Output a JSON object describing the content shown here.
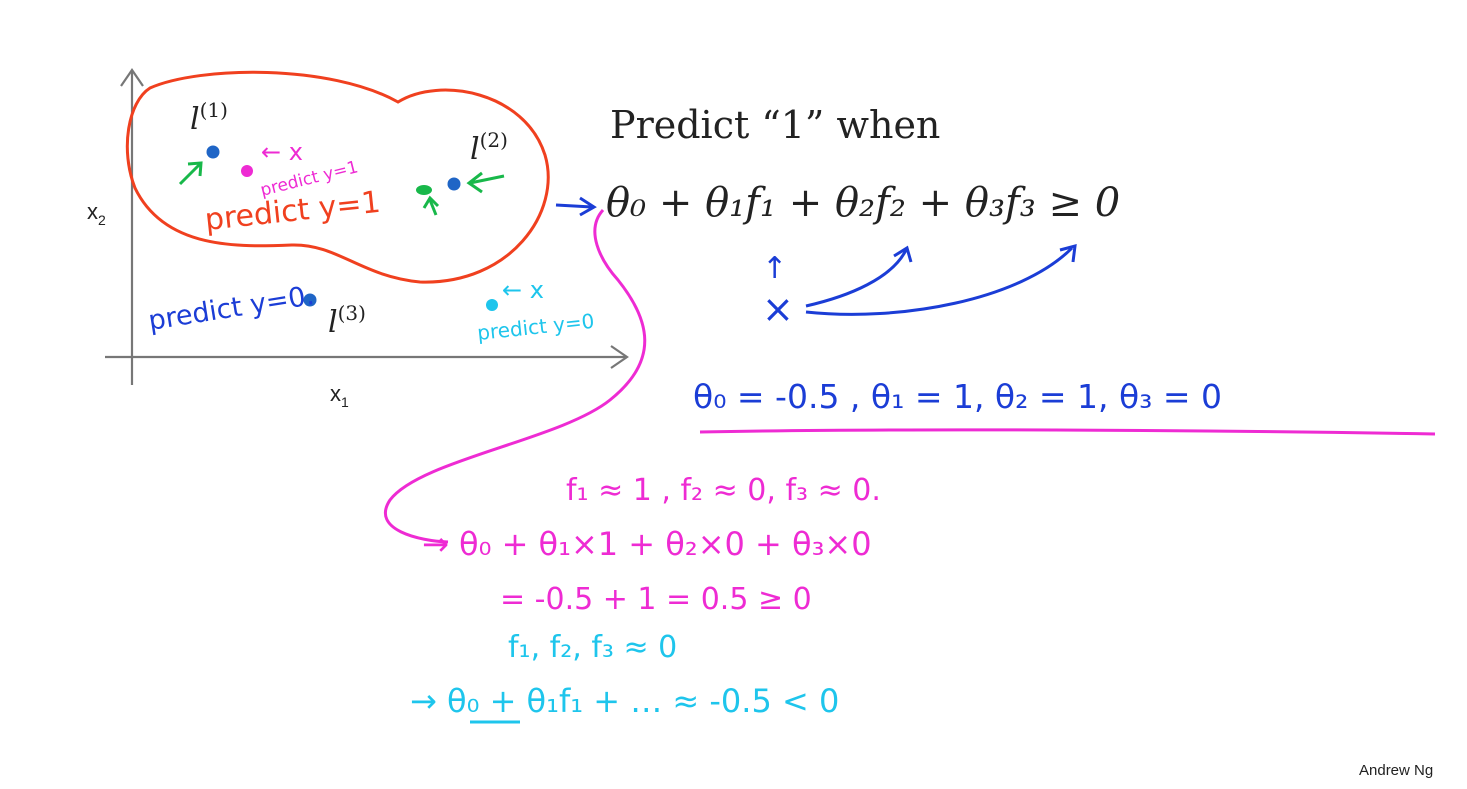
{
  "slide": {
    "title": "Predict “1” when",
    "attribution": "Andrew Ng"
  },
  "plot": {
    "x_label": "x",
    "x_label_sub": "1",
    "y_label": "x",
    "y_label_sub": "2",
    "landmarks": [
      {
        "base": "l",
        "sup": "(1)"
      },
      {
        "base": "l",
        "sup": "(2)"
      },
      {
        "base": "l",
        "sup": "(3)"
      }
    ],
    "annotations": {
      "inside_region": "predict y=1",
      "pink_point": "predict y=1",
      "pink_arrow": "← x",
      "outside_region": "predict y=0.",
      "cyan_point": "predict y=0",
      "cyan_arrow": "← x"
    }
  },
  "equation": {
    "inequality": "θ₀ + θ₁f₁ + θ₂f₂ + θ₃f₃ ≥ 0",
    "x_mark": "×",
    "up_arrow": "↑"
  },
  "handwritten": {
    "params": "θ₀ = -0.5 ,  θ₁ = 1,  θ₂ = 1,  θ₃ = 0",
    "line1": "f₁ ≈ 1 ,   f₂ ≈ 0, f₃ ≈ 0.",
    "line2": "→ θ₀ + θ₁×1 + θ₂×0 + θ₃×0",
    "line3": "= -0.5 + 1  = 0.5 ≥ 0",
    "line4": "f₁, f₂, f₃ ≈ 0",
    "line5": "→ θ₀ + θ₁f₁ + … ≈ -0.5 < 0"
  },
  "colors": {
    "red": "#f0401f",
    "blue": "#1b3dd6",
    "dark_blue": "#1f65c6",
    "pink": "#ee2bd3",
    "cyan": "#1ec5ec",
    "green": "#18b84a",
    "dark": "#222222"
  }
}
